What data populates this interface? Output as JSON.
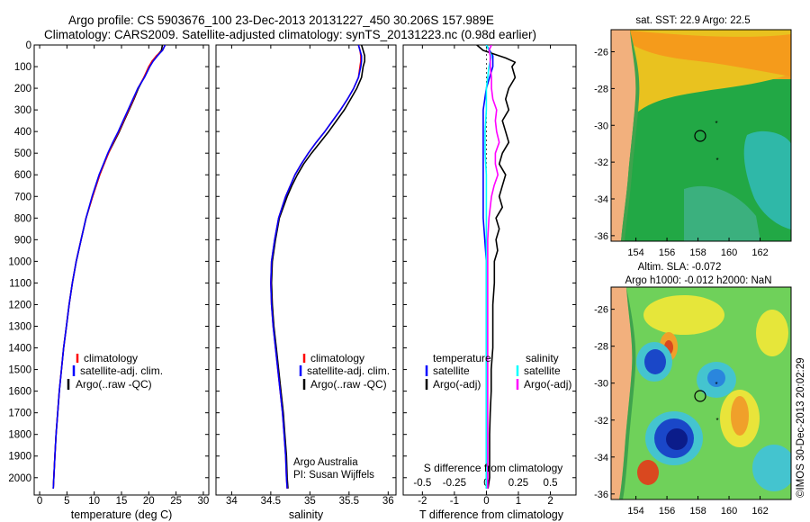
{
  "title": {
    "line1": "Argo profile: CS 5903676_100 23-Dec-2013 20131227_450 30.206S 157.989E",
    "line2": "Climatology: CARS2009. Satellite-adjusted climatology: synTS_20131223.nc (0.98d earlier)"
  },
  "colors": {
    "climatology": "#ff0000",
    "satellite": "#0000ff",
    "argo": "#000000",
    "temp_diff_satellite": "#0000ff",
    "salt_diff_satellite": "#00ffff",
    "salt_diff_argo": "#ff00ff"
  },
  "panels": {
    "temperature": {
      "xlabel": "temperature (deg C)",
      "xticks": [
        "0",
        "5",
        "10",
        "15",
        "20",
        "25",
        "30"
      ],
      "legend": [
        "climatology",
        "satellite-adj. clim.",
        "Argo(..raw -QC)"
      ]
    },
    "salinity": {
      "xlabel": "salinity",
      "xticks": [
        "34",
        "34.5",
        "35",
        "35.5",
        "36"
      ],
      "legend": [
        "climatology",
        "satellite-adj. clim.",
        "Argo(..raw -QC)"
      ],
      "note1": "Argo Australia",
      "note2": "PI: Susan Wijffels"
    },
    "difference": {
      "xlabel": "T difference from climatology",
      "xticks": [
        "-2",
        "-1",
        "0",
        "1",
        "2"
      ],
      "top_label": "S difference from climatology",
      "sticks": [
        "-0.5",
        "-0.25",
        "0",
        "0.25",
        "0.5"
      ],
      "legend_temp_title": "temperature",
      "legend_salt_title": "salinity",
      "legend_temp": [
        "satellite",
        "Argo(-adj)"
      ],
      "legend_salt": [
        "satellite",
        "Argo(-adj)"
      ]
    },
    "depth_ticks": [
      "0",
      "100",
      "200",
      "300",
      "400",
      "500",
      "600",
      "700",
      "800",
      "900",
      "1000",
      "1100",
      "1200",
      "1300",
      "1400",
      "1500",
      "1600",
      "1700",
      "1800",
      "1900",
      "2000"
    ]
  },
  "maps": {
    "sst_title": "sat. SST: 22.9  Argo: 22.5",
    "sla_title1": "Altim. SLA: -0.072",
    "sla_title2": "Argo h1000: -0.012 h2000: NaN",
    "lat_ticks": [
      "-26",
      "-28",
      "-30",
      "-32",
      "-34",
      "-36"
    ],
    "lon_ticks": [
      "154",
      "156",
      "158",
      "160",
      "162"
    ],
    "credit": "©IMOS 30-Dec-2013 20:02:29"
  },
  "chart_data": [
    {
      "type": "line",
      "title": "",
      "xlabel": "temperature (deg C)",
      "ylabel": "",
      "xlim": [
        -1,
        31
      ],
      "ylim": [
        2080,
        0
      ],
      "y_depth": [
        0,
        25,
        50,
        75,
        100,
        150,
        200,
        250,
        300,
        350,
        400,
        450,
        500,
        550,
        600,
        700,
        800,
        900,
        1000,
        1100,
        1200,
        1300,
        1400,
        1500,
        1600,
        1700,
        1800,
        1900,
        2000,
        2050
      ],
      "series": [
        {
          "name": "climatology",
          "x": [
            23.0,
            22.5,
            21.4,
            20.6,
            20.0,
            19.1,
            18.0,
            17.2,
            16.3,
            15.4,
            14.5,
            13.5,
            12.6,
            11.8,
            11.0,
            9.7,
            8.5,
            7.6,
            6.7,
            6.0,
            5.4,
            4.9,
            4.4,
            4.0,
            3.6,
            3.3,
            3.0,
            2.8,
            2.6,
            2.5
          ]
        },
        {
          "name": "satellite-adj. clim.",
          "x": [
            23.0,
            22.5,
            21.6,
            20.8,
            20.2,
            19.2,
            18.0,
            17.1,
            16.2,
            15.3,
            14.4,
            13.4,
            12.5,
            11.7,
            10.9,
            9.6,
            8.5,
            7.6,
            6.7,
            6.0,
            5.4,
            4.9,
            4.4,
            4.0,
            3.6,
            3.3,
            3.0,
            2.8,
            2.6,
            2.5
          ]
        },
        {
          "name": "Argo(..raw -QC)",
          "x": [
            22.5,
            22.3,
            21.5,
            20.6,
            20.1,
            19.1,
            18.1,
            17.3,
            16.4,
            15.5,
            14.6,
            13.6,
            12.6,
            11.8,
            11.0,
            9.7,
            8.5,
            7.6,
            6.7,
            6.0,
            5.4,
            4.9,
            4.4,
            4.0,
            3.6,
            3.3,
            3.0,
            2.8,
            2.6,
            2.5
          ]
        }
      ]
    },
    {
      "type": "line",
      "title": "",
      "xlabel": "salinity",
      "ylabel": "",
      "xlim": [
        33.8,
        36.1
      ],
      "ylim": [
        2080,
        0
      ],
      "y_depth": [
        0,
        25,
        50,
        75,
        100,
        150,
        200,
        250,
        300,
        350,
        400,
        450,
        500,
        550,
        600,
        650,
        700,
        800,
        900,
        1000,
        1100,
        1200,
        1300,
        1400,
        1500,
        1600,
        1700,
        1800,
        1900,
        2000,
        2050
      ],
      "series": [
        {
          "name": "climatology",
          "x": [
            35.62,
            35.64,
            35.65,
            35.65,
            35.64,
            35.62,
            35.56,
            35.48,
            35.39,
            35.29,
            35.19,
            35.08,
            34.98,
            34.89,
            34.81,
            34.75,
            34.69,
            34.6,
            34.55,
            34.51,
            34.5,
            34.51,
            34.53,
            34.56,
            34.59,
            34.62,
            34.65,
            34.67,
            34.69,
            34.7,
            34.71
          ]
        },
        {
          "name": "satellite-adj. clim.",
          "x": [
            35.62,
            35.64,
            35.66,
            35.66,
            35.65,
            35.62,
            35.56,
            35.48,
            35.39,
            35.29,
            35.19,
            35.08,
            34.98,
            34.89,
            34.81,
            34.75,
            34.69,
            34.6,
            34.55,
            34.51,
            34.5,
            34.51,
            34.53,
            34.56,
            34.59,
            34.62,
            34.65,
            34.67,
            34.69,
            34.7,
            34.71
          ]
        },
        {
          "name": "Argo(..raw -QC)",
          "x": [
            35.66,
            35.68,
            35.7,
            35.7,
            35.68,
            35.66,
            35.6,
            35.52,
            35.44,
            35.34,
            35.24,
            35.13,
            35.02,
            34.92,
            34.84,
            34.77,
            34.71,
            34.61,
            34.56,
            34.52,
            34.51,
            34.52,
            34.54,
            34.57,
            34.6,
            34.63,
            34.66,
            34.68,
            34.7,
            34.71,
            34.72
          ]
        }
      ]
    },
    {
      "type": "line",
      "title": "",
      "xlabel": "T difference from climatology",
      "x2label": "S difference from climatology",
      "ylabel": "",
      "xlim": [
        -2.6,
        2.8
      ],
      "x2lim": [
        -0.65,
        0.7
      ],
      "ylim": [
        2080,
        0
      ],
      "series": [
        {
          "name": "temperature satellite",
          "axis": "T",
          "y": [
            0,
            25,
            50,
            100,
            200,
            300,
            400,
            500,
            600,
            700,
            800,
            1000,
            1500,
            2050
          ],
          "x": [
            0.0,
            0.1,
            0.2,
            0.2,
            0.0,
            -0.1,
            -0.1,
            -0.1,
            -0.1,
            -0.1,
            -0.1,
            0.0,
            0.0,
            0.0
          ]
        },
        {
          "name": "temperature Argo(-adj)",
          "axis": "T",
          "y": [
            0,
            25,
            40,
            60,
            80,
            100,
            150,
            200,
            250,
            300,
            350,
            400,
            450,
            500,
            550,
            600,
            650,
            700,
            750,
            800,
            850,
            900,
            950,
            1000,
            1100,
            1200,
            1300,
            1400,
            1500,
            1600,
            1700,
            1800,
            1900,
            2000,
            2050
          ],
          "x": [
            -0.3,
            -0.1,
            0.2,
            0.6,
            0.9,
            0.8,
            0.9,
            0.7,
            0.6,
            0.7,
            0.5,
            0.6,
            0.7,
            0.5,
            0.4,
            0.6,
            0.5,
            0.4,
            0.5,
            0.3,
            0.4,
            0.3,
            0.35,
            0.25,
            0.25,
            0.2,
            0.2,
            0.2,
            0.15,
            0.15,
            0.12,
            0.1,
            0.1,
            0.1,
            0.05
          ]
        },
        {
          "name": "salinity satellite",
          "axis": "S",
          "y": [
            0,
            25,
            50,
            100,
            200,
            300,
            400,
            500,
            600,
            700,
            1000,
            1500,
            2050
          ],
          "x": [
            0.0,
            0.02,
            0.04,
            0.02,
            0.0,
            0.0,
            -0.01,
            -0.01,
            0.0,
            0.0,
            0.0,
            0.0,
            0.0
          ]
        },
        {
          "name": "salinity Argo(-adj)",
          "axis": "S",
          "y": [
            0,
            25,
            50,
            100,
            150,
            200,
            250,
            300,
            350,
            400,
            450,
            500,
            550,
            600,
            650,
            700,
            800,
            900,
            1000,
            1200,
            1500,
            1800,
            2050
          ],
          "x": [
            0.04,
            0.02,
            0.03,
            0.03,
            0.04,
            0.04,
            0.05,
            0.08,
            0.07,
            0.08,
            0.1,
            0.07,
            0.07,
            0.09,
            0.06,
            0.04,
            0.02,
            0.01,
            0.01,
            0.01,
            0.01,
            0.01,
            0.01
          ]
        }
      ]
    },
    {
      "type": "heatmap",
      "title": "sat. SST: 22.9  Argo: 22.5",
      "xlabel": "",
      "ylabel": "",
      "xlim": [
        152.4,
        164.0
      ],
      "ylim": [
        -36.3,
        -24.8
      ],
      "argo_position": [
        157.989,
        -30.206
      ],
      "other_floats": [
        [
          159.0,
          -29.5
        ],
        [
          159.0,
          -31.5
        ]
      ]
    },
    {
      "type": "heatmap",
      "title": "Altim. SLA: -0.072",
      "xlabel": "",
      "ylabel": "",
      "xlim": [
        152.4,
        164.0
      ],
      "ylim": [
        -36.3,
        -24.8
      ],
      "argo_position": [
        157.989,
        -30.206
      ],
      "other_floats": [
        [
          159.0,
          -29.5
        ],
        [
          159.0,
          -31.5
        ]
      ]
    }
  ]
}
